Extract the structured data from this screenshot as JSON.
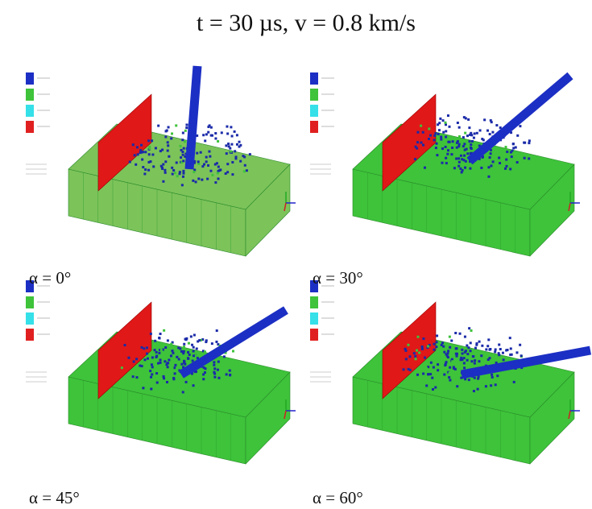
{
  "title": "t = 30 µs, v = 0.8 km/s",
  "panels": [
    {
      "caption": "α = 0°"
    },
    {
      "caption": "α = 30°"
    },
    {
      "caption": "α = 45°"
    },
    {
      "caption": "α = 60°"
    }
  ]
}
